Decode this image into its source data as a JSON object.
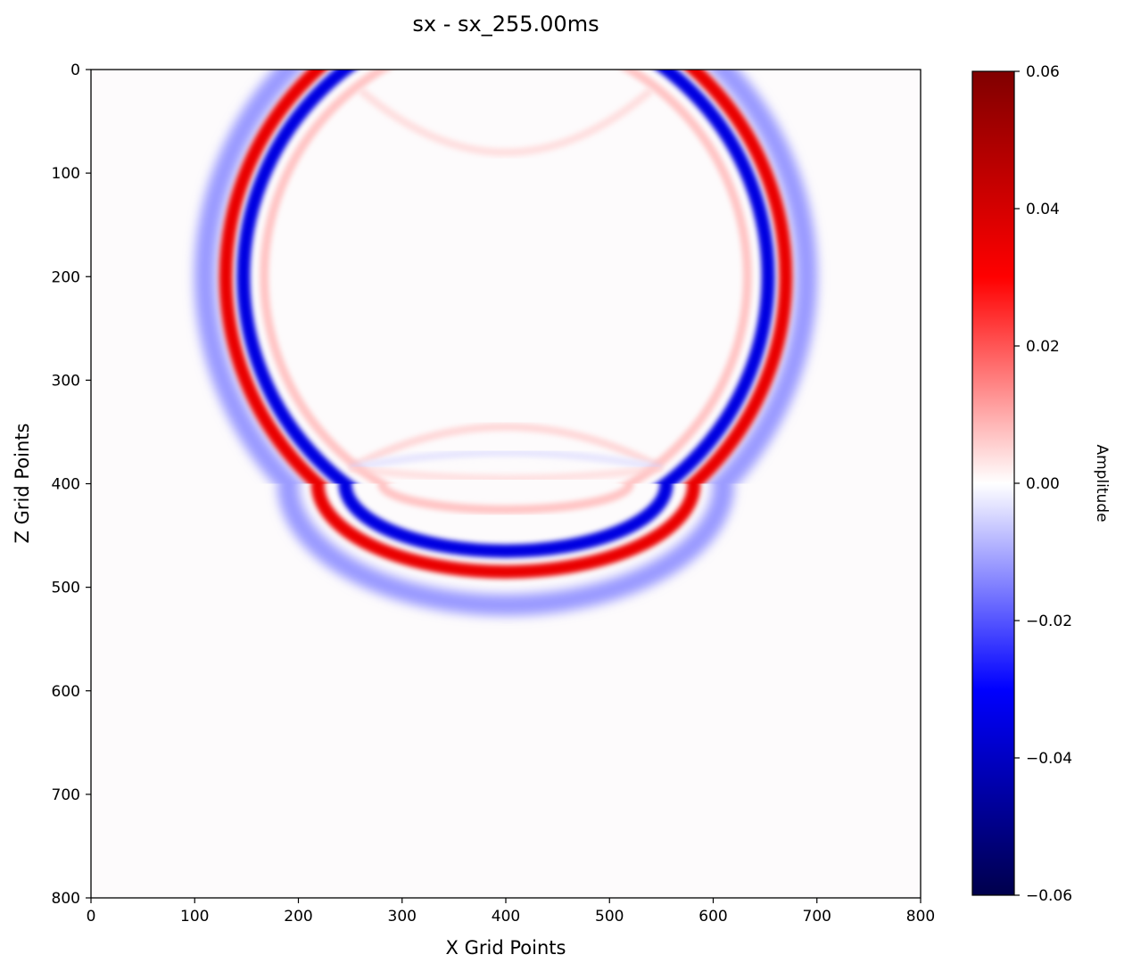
{
  "chart_data": {
    "type": "heatmap",
    "title": "sx - sx_255.00ms",
    "xlabel": "X Grid Points",
    "ylabel": "Z Grid Points",
    "xlim": [
      0,
      800
    ],
    "ylim": [
      800,
      0
    ],
    "x_ticks": [
      "0",
      "100",
      "200",
      "300",
      "400",
      "500",
      "600",
      "700",
      "800"
    ],
    "y_ticks": [
      "0",
      "100",
      "200",
      "300",
      "400",
      "500",
      "600",
      "700",
      "800"
    ],
    "colorbar": {
      "label": "Amplitude",
      "range": [
        -0.06,
        0.06
      ],
      "ticks": [
        "0.06",
        "0.04",
        "0.02",
        "0.00",
        "−0.02",
        "−0.04",
        "−0.06"
      ],
      "colormap": "seismic",
      "colors": [
        "#00004c",
        "#0000ff",
        "#ffffff",
        "#ff0000",
        "#800000"
      ]
    },
    "field": {
      "source_x": 400,
      "source_z": 200,
      "interface_z": 400,
      "wavefronts": [
        {
          "name": "outer-trough",
          "radius": 290,
          "amplitude": -0.012,
          "region": "above-interface"
        },
        {
          "name": "red-crest",
          "radius": 270,
          "amplitude": 0.035,
          "region": "above-interface"
        },
        {
          "name": "blue-trough",
          "radius": 253,
          "amplitude": -0.035,
          "region": "above-interface"
        },
        {
          "name": "inner-pink",
          "radius": 233,
          "amplitude": 0.007,
          "region": "above-interface"
        }
      ],
      "transmitted_arc_bottom_z": [
        517,
        485,
        465,
        425
      ],
      "reflected_arcs_vertex_z": [
        345,
        370,
        395
      ]
    }
  }
}
